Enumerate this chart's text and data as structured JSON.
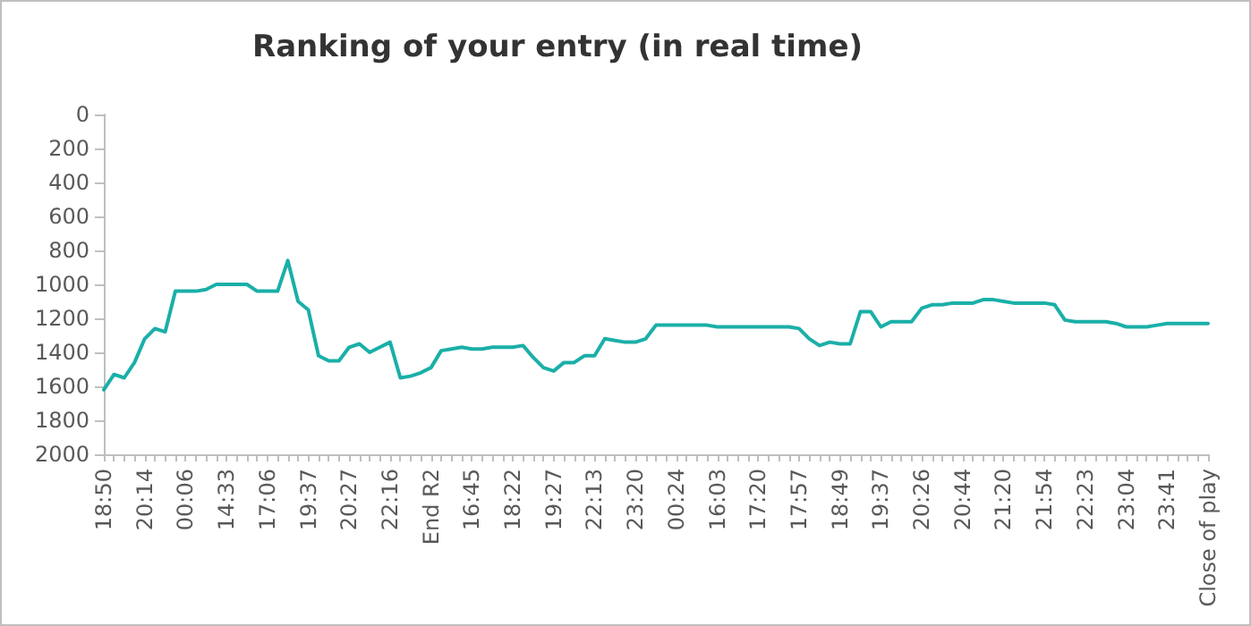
{
  "chart_data": {
    "type": "line",
    "title": "Ranking of your entry (in real time)",
    "categories": [
      "18:50",
      null,
      null,
      null,
      "20:14",
      null,
      null,
      null,
      "00:06",
      null,
      null,
      null,
      "14:33",
      null,
      null,
      null,
      "17:06",
      null,
      null,
      null,
      "19:37",
      null,
      null,
      null,
      "20:27",
      null,
      null,
      null,
      "22:16",
      null,
      null,
      null,
      "End R2",
      null,
      null,
      null,
      "16:45",
      null,
      null,
      null,
      "18:22",
      null,
      null,
      null,
      "19:27",
      null,
      null,
      null,
      "22:13",
      null,
      null,
      null,
      "23:20",
      null,
      null,
      null,
      "00:24",
      null,
      null,
      null,
      "16:03",
      null,
      null,
      null,
      "17:20",
      null,
      null,
      null,
      "17:57",
      null,
      null,
      null,
      "18:49",
      null,
      null,
      null,
      "19:37",
      null,
      null,
      null,
      "20:26",
      null,
      null,
      null,
      "20:44",
      null,
      null,
      null,
      "21:20",
      null,
      null,
      null,
      "21:54",
      null,
      null,
      null,
      "22:23",
      null,
      null,
      null,
      "23:04",
      null,
      null,
      null,
      "23:41",
      null,
      null,
      null,
      "Close of play"
    ],
    "series": [
      {
        "color": "#1aafa8",
        "values": [
          1620,
          1530,
          1550,
          1460,
          1320,
          1260,
          1280,
          1040,
          1040,
          1040,
          1030,
          1000,
          1000,
          1000,
          1000,
          1040,
          1040,
          1040,
          860,
          1100,
          1150,
          1420,
          1450,
          1450,
          1370,
          1350,
          1400,
          1370,
          1340,
          1550,
          1540,
          1520,
          1490,
          1390,
          1380,
          1370,
          1380,
          1380,
          1370,
          1370,
          1370,
          1360,
          1430,
          1490,
          1510,
          1460,
          1460,
          1420,
          1420,
          1320,
          1330,
          1340,
          1340,
          1320,
          1240,
          1240,
          1240,
          1240,
          1240,
          1240,
          1250,
          1250,
          1250,
          1250,
          1250,
          1250,
          1250,
          1250,
          1260,
          1320,
          1360,
          1340,
          1350,
          1350,
          1160,
          1160,
          1250,
          1220,
          1220,
          1220,
          1140,
          1120,
          1120,
          1110,
          1110,
          1110,
          1090,
          1090,
          1100,
          1110,
          1110,
          1110,
          1110,
          1120,
          1210,
          1220,
          1220,
          1220,
          1220,
          1230,
          1250,
          1250,
          1250,
          1240,
          1230,
          1230,
          1230,
          1230,
          1230
        ]
      }
    ],
    "ylim": [
      2000,
      0
    ],
    "yticks": [
      0,
      200,
      400,
      600,
      800,
      1000,
      1200,
      1400,
      1600,
      1800,
      2000
    ],
    "grid": false,
    "marker": "none",
    "line_style": "solid"
  }
}
